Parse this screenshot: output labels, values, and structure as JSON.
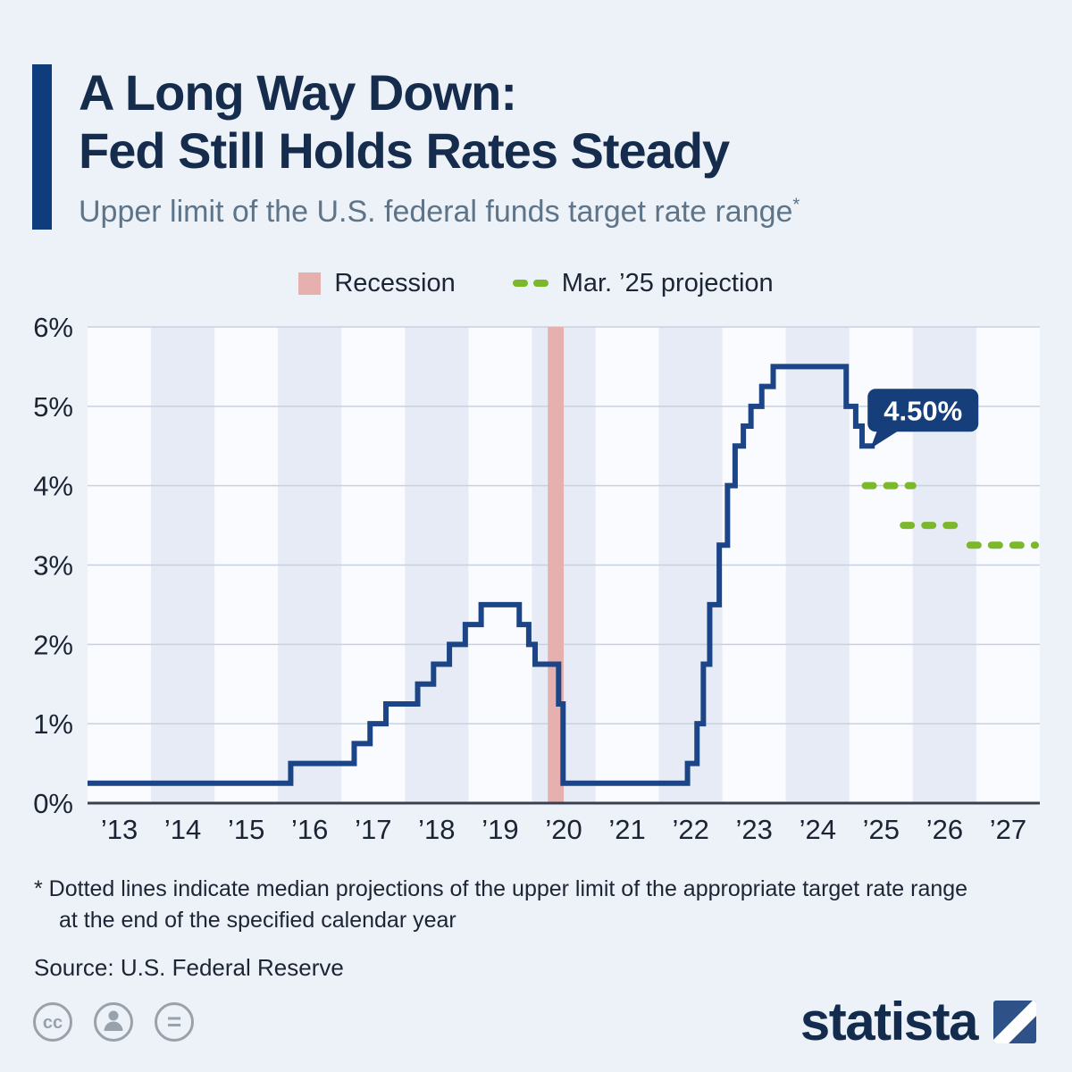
{
  "header": {
    "title_line1": "A Long Way Down:",
    "title_line2": "Fed Still Holds Rates Steady",
    "subtitle": "Upper limit of the U.S. federal funds target rate range",
    "subtitle_marker": "*"
  },
  "legend": {
    "recession_label": "Recession",
    "projection_label": "Mar. ’25 projection"
  },
  "chart_data": {
    "type": "line",
    "title": "Upper limit of the U.S. federal funds target rate range",
    "unit": "%",
    "ylim": [
      0,
      6
    ],
    "x_domain": [
      2012.75,
      2027.75
    ],
    "y_ticks": [
      {
        "value": 6,
        "label": "6%"
      },
      {
        "value": 5,
        "label": "5%"
      },
      {
        "value": 4,
        "label": "4%"
      },
      {
        "value": 3,
        "label": "3%"
      },
      {
        "value": 2,
        "label": "2%"
      },
      {
        "value": 1,
        "label": "1%"
      },
      {
        "value": 0,
        "label": "0%"
      }
    ],
    "x_labels": [
      "’13",
      "’14",
      "’15",
      "’16",
      "’17",
      "’18",
      "’19",
      "’20",
      "’21",
      "’22",
      "’23",
      "’24",
      "’25",
      "’26",
      "’27"
    ],
    "steps": [
      [
        2012.75,
        0.25
      ],
      [
        2015.95,
        0.5
      ],
      [
        2016.95,
        0.75
      ],
      [
        2017.2,
        1.0
      ],
      [
        2017.45,
        1.25
      ],
      [
        2017.95,
        1.5
      ],
      [
        2018.2,
        1.75
      ],
      [
        2018.45,
        2.0
      ],
      [
        2018.7,
        2.25
      ],
      [
        2018.95,
        2.5
      ],
      [
        2019.55,
        2.25
      ],
      [
        2019.7,
        2.0
      ],
      [
        2019.8,
        1.75
      ],
      [
        2020.17,
        1.25
      ],
      [
        2020.24,
        0.25
      ],
      [
        2022.2,
        0.5
      ],
      [
        2022.35,
        1.0
      ],
      [
        2022.45,
        1.75
      ],
      [
        2022.55,
        2.5
      ],
      [
        2022.7,
        3.25
      ],
      [
        2022.83,
        4.0
      ],
      [
        2022.95,
        4.5
      ],
      [
        2023.08,
        4.75
      ],
      [
        2023.2,
        5.0
      ],
      [
        2023.37,
        5.25
      ],
      [
        2023.55,
        5.5
      ],
      [
        2024.7,
        5.0
      ],
      [
        2024.85,
        4.75
      ],
      [
        2024.95,
        4.5
      ]
    ],
    "line_end_x": 2025.15,
    "recession_band": {
      "label": "Recession",
      "x": [
        2020.0,
        2020.25
      ]
    },
    "projections": [
      {
        "year": "2025",
        "value": 4.0,
        "x": [
          2025.0,
          2025.75
        ]
      },
      {
        "year": "2026",
        "value": 3.5,
        "x": [
          2025.6,
          2026.5
        ]
      },
      {
        "year": "2027",
        "value": 3.25,
        "x": [
          2026.65,
          2027.68
        ]
      }
    ],
    "callout": {
      "label": "4.50%",
      "x": 2025.15,
      "value": 4.5
    }
  },
  "footnote": {
    "line1": "* Dotted lines indicate median projections of the upper limit of the appropriate target rate range",
    "line2": "at the end of the specified calendar year"
  },
  "source": "Source: U.S. Federal Reserve",
  "footer": {
    "brand": "statista",
    "badges": [
      {
        "name": "cc-icon",
        "glyph": "cc"
      },
      {
        "name": "attribution-icon",
        "glyph": ""
      },
      {
        "name": "equals-icon",
        "glyph": "="
      }
    ]
  },
  "colors": {
    "page_bg": "#edf1f8",
    "accent_bar": "#0e3c7d",
    "title": "#152c4d",
    "subtitle": "#5e7489",
    "text": "#1c2534",
    "line": "#1b4586",
    "projection": "#7cb82c",
    "recession": "#e5b0ae",
    "band_light": "#f9fbfe",
    "band_dark": "#e6ebf5",
    "grid": "#c8d1e0",
    "axis": "#39414f",
    "axis_text": "#1b2433",
    "callout_bg": "#153e7a",
    "footer_gray": "#99a1ab",
    "brand_navy": "#132c4e",
    "brand_square": "#2e5187"
  }
}
